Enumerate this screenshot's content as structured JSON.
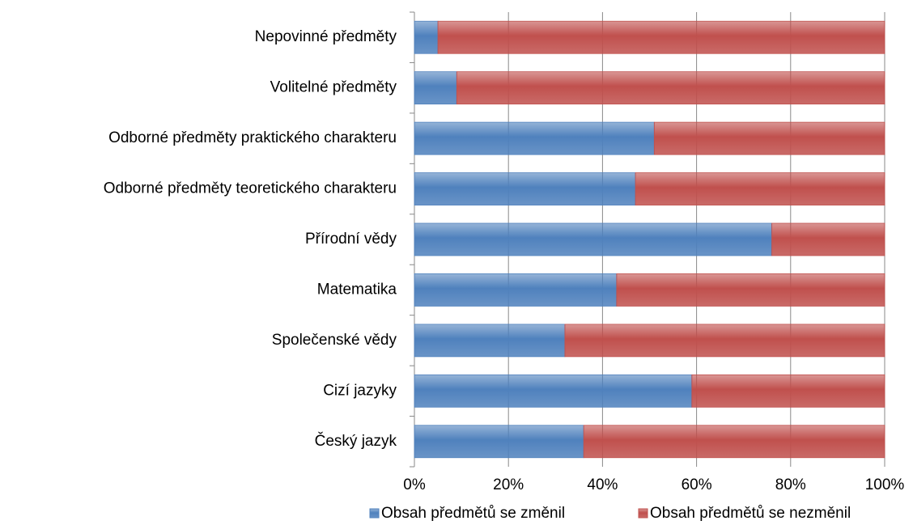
{
  "chart_data": {
    "type": "stacked-bar-horizontal",
    "categories": [
      "Nepovinné předměty",
      "Volitelné předměty",
      "Odborné předměty praktického charakteru",
      "Odborné předměty teoretického charakteru",
      "Přírodní vědy",
      "Matematika",
      "Společenské vědy",
      "Cizí jazyky",
      "Český jazyk"
    ],
    "series": [
      {
        "name": "Obsah předmětů se změnil",
        "color": "#4f81bd",
        "values": [
          5,
          9,
          51,
          47,
          76,
          43,
          32,
          59,
          36
        ]
      },
      {
        "name": "Obsah předmětů se nezměnil",
        "color": "#c0504d",
        "values": [
          95,
          91,
          49,
          53,
          24,
          57,
          68,
          41,
          64
        ]
      }
    ],
    "xlim": [
      0,
      100
    ],
    "xticks": [
      {
        "value": 0,
        "label": "0%"
      },
      {
        "value": 20,
        "label": "20%"
      },
      {
        "value": 40,
        "label": "40%"
      },
      {
        "value": 60,
        "label": "60%"
      },
      {
        "value": 80,
        "label": "80%"
      },
      {
        "value": 100,
        "label": "100%"
      }
    ],
    "grid": true,
    "legend": "bottom"
  }
}
